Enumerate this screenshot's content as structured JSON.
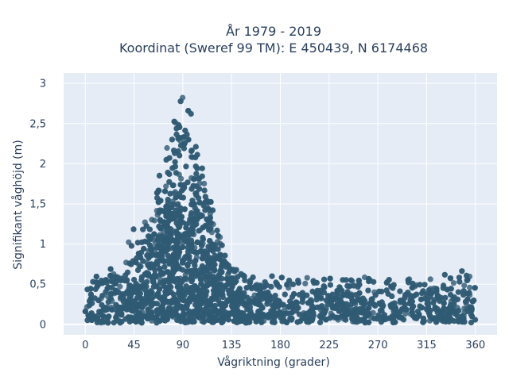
{
  "chart_data": {
    "type": "scatter",
    "title_lines": [
      "År 1979 - 2019",
      "Koordinat (Sweref 99 TM): E 450439, N 6174468"
    ],
    "xlabel": "Vågriktning (grader)",
    "ylabel": "Signifikant våghöjd (m)",
    "xlim": [
      -20,
      380
    ],
    "ylim": [
      -0.13,
      3.13
    ],
    "x_ticks": [
      0,
      45,
      90,
      135,
      180,
      225,
      270,
      315,
      360
    ],
    "x_tick_labels": [
      "0",
      "45",
      "90",
      "135",
      "180",
      "225",
      "270",
      "315",
      "360"
    ],
    "y_ticks": [
      0,
      0.5,
      1,
      1.5,
      2,
      2.5,
      3
    ],
    "y_tick_labels": [
      "0",
      "0,5",
      "1",
      "1,5",
      "2",
      "2,5",
      "3"
    ],
    "grid": true,
    "marker_color": "#2f5a73",
    "plot_background": "#e5ecf6",
    "envelope": {
      "direction_deg": [
        0,
        10,
        20,
        30,
        40,
        50,
        60,
        70,
        80,
        85,
        90,
        95,
        100,
        110,
        120,
        130,
        140,
        160,
        180,
        200,
        220,
        240,
        260,
        280,
        300,
        320,
        340,
        350,
        360
      ],
      "max_height_m": [
        0.55,
        0.6,
        0.75,
        0.85,
        1.05,
        1.35,
        1.6,
        1.95,
        2.55,
        2.8,
        3.0,
        2.85,
        2.6,
        2.05,
        1.35,
        0.95,
        0.75,
        0.62,
        0.6,
        0.58,
        0.6,
        0.62,
        0.6,
        0.62,
        0.66,
        0.68,
        0.66,
        0.7,
        0.66
      ]
    }
  }
}
